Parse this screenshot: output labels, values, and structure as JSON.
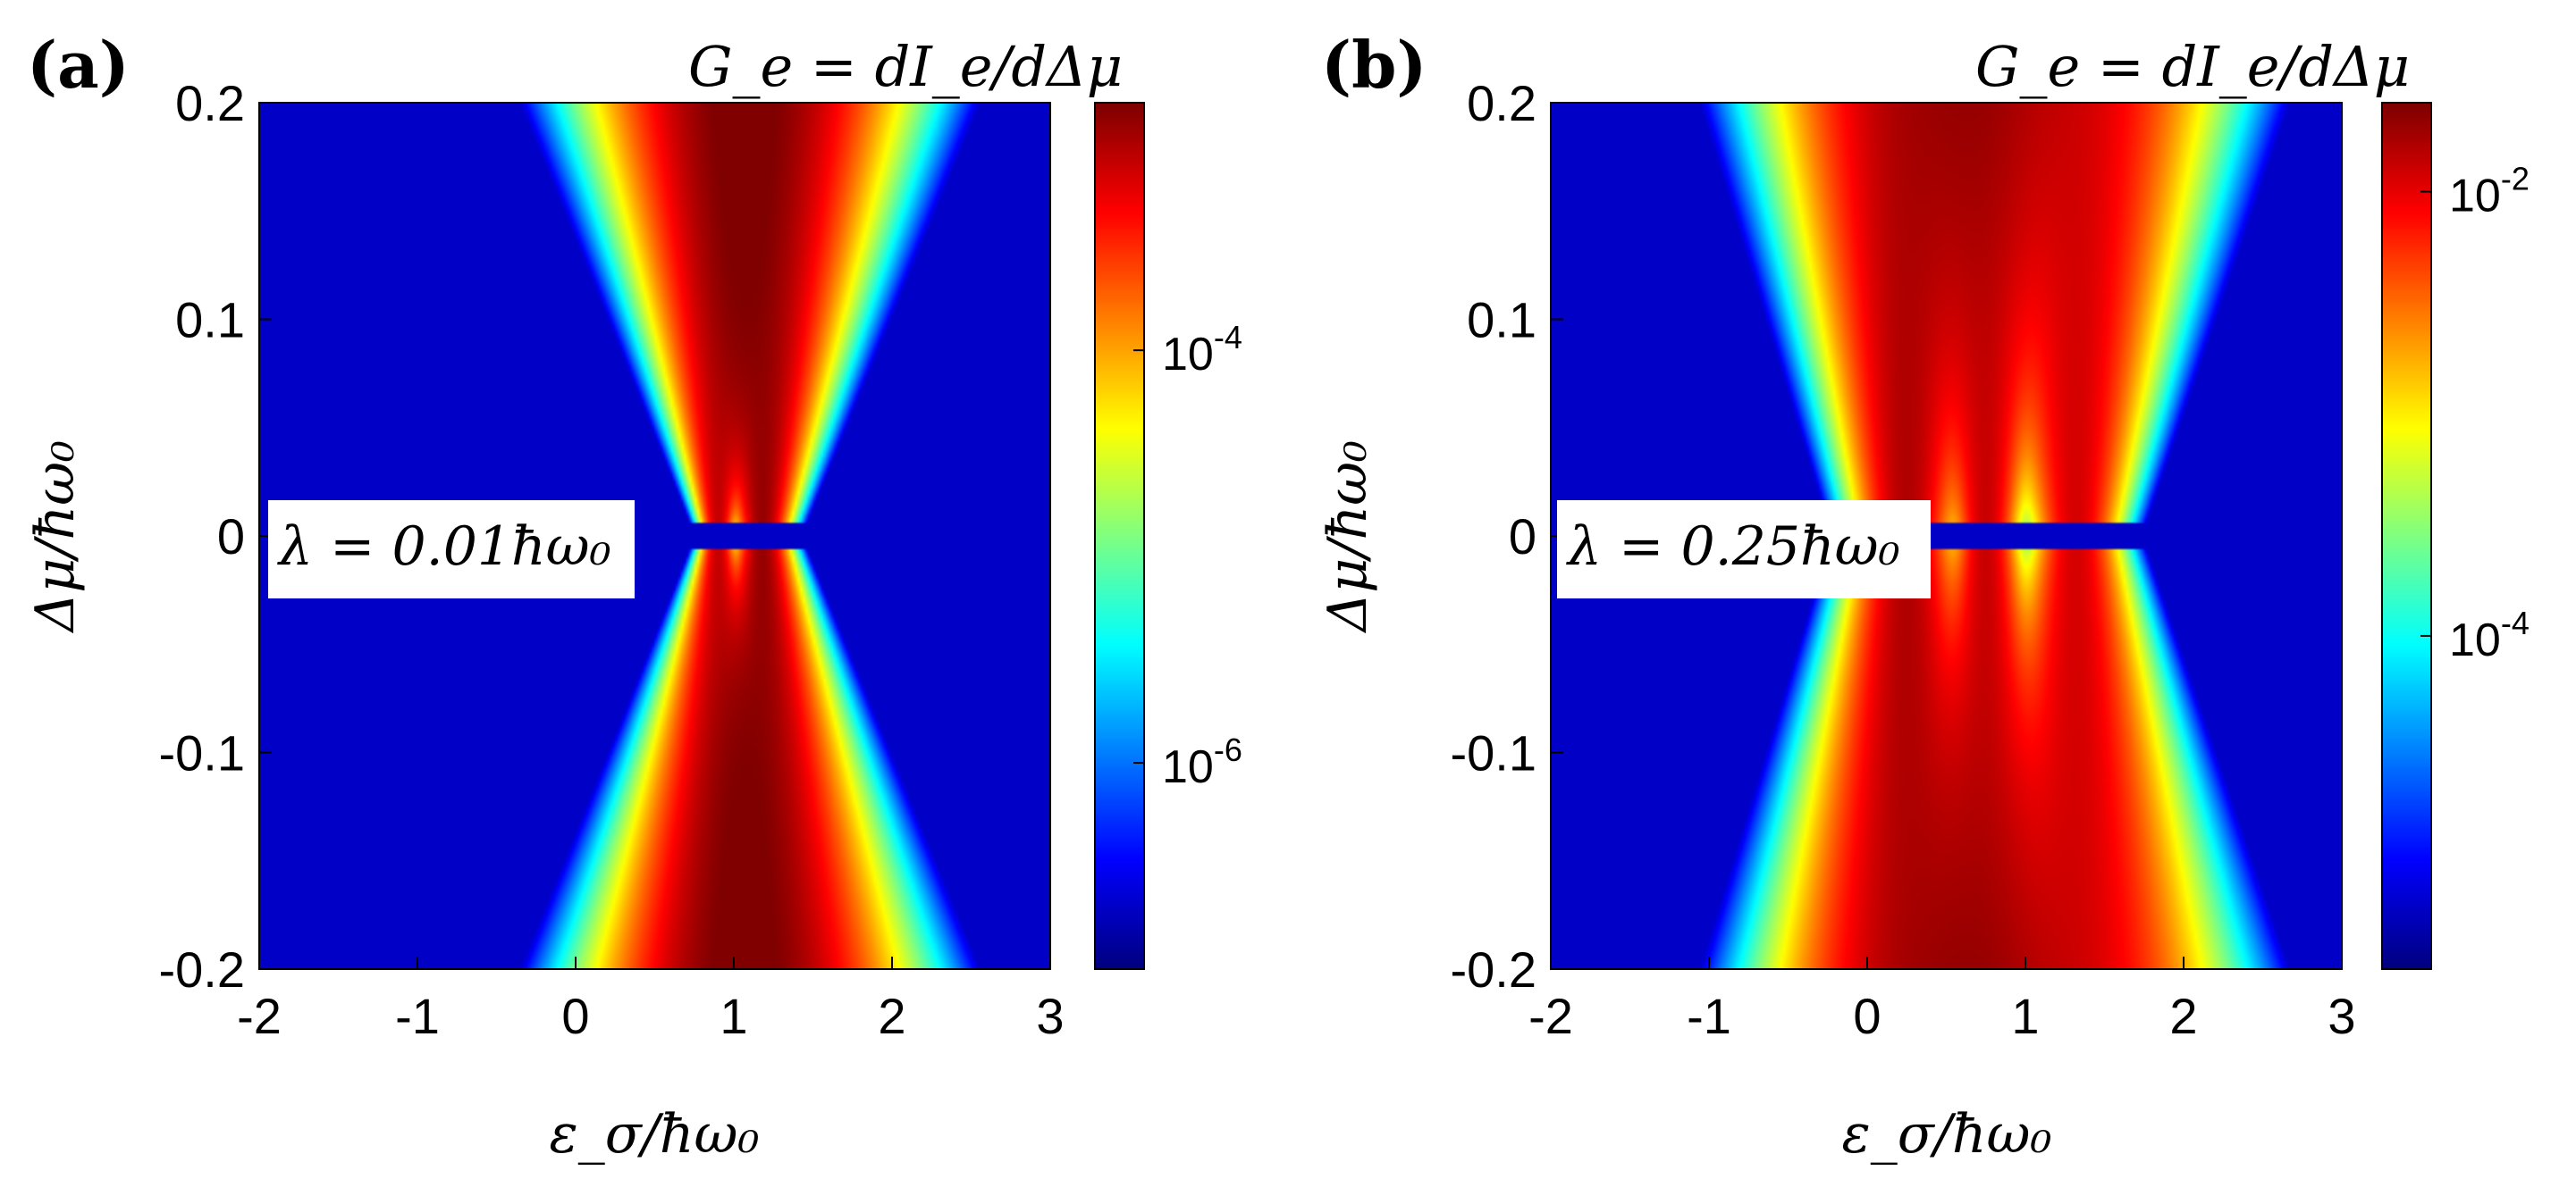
{
  "chart_data": [
    {
      "type": "heatmap",
      "panel_label": "(a)",
      "title": "G_e = dI_e/dΔμ",
      "xlabel": "ε_σ/ħω₀",
      "ylabel": "Δμ/ħω₀",
      "xlim": [
        -2,
        3
      ],
      "ylim": [
        -0.2,
        0.2
      ],
      "xticks": [
        "-2",
        "-1",
        "0",
        "1",
        "2",
        "3"
      ],
      "yticks": [
        "-0.2",
        "-0.1",
        "0",
        "0.1",
        "0.2"
      ],
      "annotation": "λ = 0.01ħω₀",
      "colorbar_scale": "log",
      "colorbar_range_log10": [
        -7.0,
        -2.8
      ],
      "colorbar_ticks": [
        {
          "base": "10",
          "exp": "-6",
          "log10": -6
        },
        {
          "base": "10",
          "exp": "-4",
          "log10": -4
        }
      ],
      "colormap": "jet",
      "bands": [
        {
          "center": 0.9,
          "width_min": 0.06,
          "width_spread": 0.45,
          "peak_log10": -3.1
        },
        {
          "center": 1.18,
          "width_min": 0.1,
          "width_spread": 0.45,
          "peak_log10": -2.9
        }
      ],
      "zero_gap_halfwidth": 0.006,
      "gap_x_range": [
        -0.1,
        2.0
      ]
    },
    {
      "type": "heatmap",
      "panel_label": "(b)",
      "title": "G_e = dI_e/dΔμ",
      "xlabel": "ε_σ/ħω₀",
      "ylabel": "Δμ/ħω₀",
      "xlim": [
        -2,
        3
      ],
      "ylim": [
        -0.2,
        0.2
      ],
      "xticks": [
        "-2",
        "-1",
        "0",
        "1",
        "2",
        "3"
      ],
      "yticks": [
        "-0.2",
        "-0.1",
        "0",
        "0.1",
        "0.2"
      ],
      "annotation": "λ = 0.25ħω₀",
      "colorbar_scale": "log",
      "colorbar_range_log10": [
        -5.5,
        -1.6
      ],
      "colorbar_ticks": [
        {
          "base": "10",
          "exp": "-4",
          "log10": -4
        },
        {
          "base": "10",
          "exp": "-2",
          "log10": -2
        }
      ],
      "colormap": "jet",
      "bands": [
        {
          "center": 0.25,
          "width_min": 0.2,
          "width_spread": 0.35,
          "peak_log10": -1.8
        },
        {
          "center": 0.75,
          "width_min": 0.14,
          "width_spread": 0.3,
          "peak_log10": -1.9
        },
        {
          "center": 1.32,
          "width_min": 0.18,
          "width_spread": 0.4,
          "peak_log10": -1.95
        }
      ],
      "zero_gap_halfwidth": 0.006,
      "gap_x_range": [
        -0.2,
        1.9
      ]
    }
  ]
}
